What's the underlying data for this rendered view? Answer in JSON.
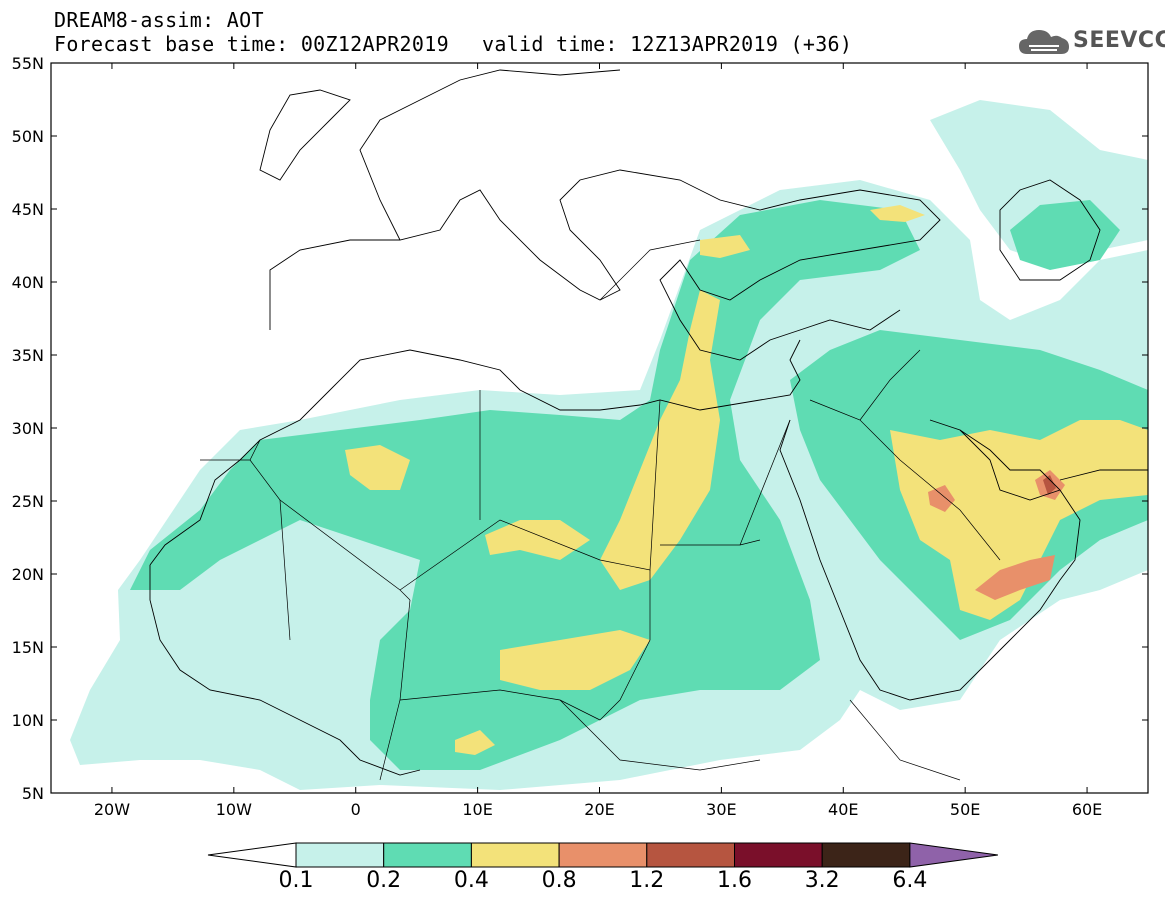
{
  "header": {
    "title": "DREAM8-assim: AOT",
    "subtitle": "Forecast base time: 00Z12APR2019",
    "valid": "valid time: 12Z13APR2019 (+36)",
    "logo": "SEEVCCC"
  },
  "map": {
    "lat_labels": [
      "55N",
      "50N",
      "45N",
      "40N",
      "35N",
      "30N",
      "25N",
      "20N",
      "15N",
      "10N",
      "5N"
    ],
    "lon_labels": [
      "20W",
      "10W",
      "0",
      "10E",
      "20E",
      "30E",
      "40E",
      "50E",
      "60E"
    ],
    "extent": {
      "lon": [
        -25,
        65
      ],
      "lat": [
        5,
        55
      ]
    }
  },
  "colorbar": {
    "levels": [
      "0.1",
      "0.2",
      "0.4",
      "0.8",
      "1.2",
      "1.6",
      "3.2",
      "6.4"
    ],
    "colors": [
      "#c6f1ea",
      "#5fdcb3",
      "#f3e27a",
      "#e8906a",
      "#b65540",
      "#7a0f2a",
      "#3c2418",
      "#8f62a9"
    ],
    "below_color": "#ffffff",
    "above_color": "#8f62a9"
  }
}
